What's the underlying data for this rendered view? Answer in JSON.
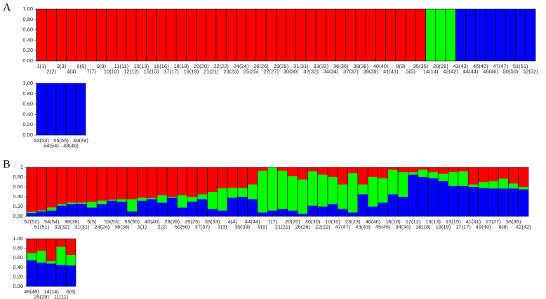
{
  "chart_data": [
    {
      "type": "bar",
      "stacked": true,
      "title": "A",
      "categories": [
        "1(1)",
        "2(2)",
        "3(3)",
        "4(4)",
        "6(6)",
        "7(7)",
        "9(9)",
        "10(10)",
        "11(11)",
        "12(12)",
        "13(13)",
        "15(15)",
        "16(16)",
        "17(17)",
        "18(18)",
        "19(19)",
        "20(20)",
        "21(21)",
        "22(22)",
        "23(23)",
        "24(24)",
        "25(25)",
        "26(26)",
        "27(27)",
        "29(29)",
        "30(30)",
        "31(31)",
        "32(32)",
        "33(33)",
        "34(34)",
        "36(36)",
        "37(37)",
        "38(38)",
        "39(39)",
        "40(40)",
        "41(41)",
        "8(8)",
        "5(5)",
        "35(35)",
        "14(14)",
        "28(28)",
        "42(42)",
        "43(43)",
        "44(44)",
        "45(45)",
        "46(46)",
        "47(47)",
        "50(50)",
        "51(51)",
        "52(52)"
      ],
      "series": [
        {
          "color": "#0000ff",
          "values": [
            0,
            0,
            0,
            0,
            0,
            0,
            0,
            0,
            0,
            0,
            0,
            0,
            0,
            0,
            0,
            0,
            0,
            0,
            0,
            0,
            0,
            0,
            0,
            0,
            0,
            0,
            0,
            0,
            0,
            0,
            0,
            0,
            0,
            0,
            0,
            0,
            0,
            0,
            0,
            0,
            0,
            0,
            1,
            1,
            1,
            1,
            1,
            1,
            1,
            1
          ]
        },
        {
          "color": "#00ff00",
          "values": [
            0,
            0,
            0,
            0,
            0,
            0,
            0,
            0,
            0,
            0,
            0,
            0,
            0,
            0,
            0,
            0,
            0,
            0,
            0,
            0,
            0,
            0,
            0,
            0,
            0,
            0,
            0,
            0,
            0,
            0,
            0,
            0,
            0,
            0,
            0,
            0,
            0,
            0,
            0,
            1,
            1,
            1,
            0,
            0,
            0,
            0,
            0,
            0,
            0,
            0
          ]
        },
        {
          "color": "#ff0000",
          "values": [
            1,
            1,
            1,
            1,
            1,
            1,
            1,
            1,
            1,
            1,
            1,
            1,
            1,
            1,
            1,
            1,
            1,
            1,
            1,
            1,
            1,
            1,
            1,
            1,
            1,
            1,
            1,
            1,
            1,
            1,
            1,
            1,
            1,
            1,
            1,
            1,
            1,
            1,
            1,
            0,
            0,
            0,
            0,
            0,
            0,
            0,
            0,
            0,
            0,
            0
          ]
        }
      ],
      "ylim": [
        0,
        1
      ],
      "yticks": [
        {
          "value": 0,
          "label": "0.00"
        },
        {
          "value": 0.2,
          "label": "0.20"
        },
        {
          "value": 0.4,
          "label": "0.40"
        },
        {
          "value": 0.6,
          "label": "0.60"
        },
        {
          "value": 0.8,
          "label": "0.80"
        },
        {
          "value": 1,
          "label": "1.00"
        }
      ]
    },
    {
      "type": "bar",
      "stacked": true,
      "categories": [
        "53(53)",
        "54(54)",
        "55(55)",
        "48(48)",
        "49(49)"
      ],
      "series": [
        {
          "color": "#0000ff",
          "values": [
            1,
            1,
            1,
            1,
            1
          ]
        },
        {
          "color": "#00ff00",
          "values": [
            0,
            0,
            0,
            0,
            0
          ]
        },
        {
          "color": "#ff0000",
          "values": [
            0,
            0,
            0,
            0,
            0
          ]
        }
      ],
      "ylim": [
        0,
        1
      ],
      "yticks": [
        {
          "value": 0,
          "label": "0.00"
        },
        {
          "value": 0.2,
          "label": "0.20"
        },
        {
          "value": 0.4,
          "label": "0.40"
        },
        {
          "value": 0.6,
          "label": "0.60"
        },
        {
          "value": 0.8,
          "label": "0.80"
        },
        {
          "value": 1,
          "label": "1.00"
        }
      ]
    },
    {
      "type": "bar",
      "stacked": true,
      "title": "B",
      "categories": [
        "52(52)",
        "51(51)",
        "54(54)",
        "32(32)",
        "38(38)",
        "31(31)",
        "5(5)",
        "24(24)",
        "53(53)",
        "36(36)",
        "55(55)",
        "1(1)",
        "40(40)",
        "2(2)",
        "28(28)",
        "50(50)",
        "25(25)",
        "37(37)",
        "33(33)",
        "3(3)",
        "4(4)",
        "39(39)",
        "44(44)",
        "9(9)",
        "7(7)",
        "21(21)",
        "20(20)",
        "26(26)",
        "30(30)",
        "22(22)",
        "10(10)",
        "47(47)",
        "23(23)",
        "43(43)",
        "46(46)",
        "45(45)",
        "16(16)",
        "34(34)",
        "12(12)",
        "18(18)",
        "13(13)",
        "19(19)",
        "15(15)",
        "17(17)",
        "41(41)",
        "49(49)",
        "27(27)",
        "8(8)",
        "35(35)",
        "42(42)"
      ],
      "series": [
        {
          "color": "#0000ff",
          "values": [
            0.07,
            0.1,
            0.12,
            0.22,
            0.25,
            0.26,
            0.18,
            0.25,
            0.32,
            0.3,
            0.1,
            0.32,
            0.35,
            0.28,
            0.38,
            0.18,
            0.3,
            0.35,
            0.15,
            0.12,
            0.38,
            0.4,
            0.35,
            0.08,
            0.12,
            0.15,
            0.12,
            0.05,
            0.22,
            0.2,
            0.25,
            0.15,
            0.08,
            0.45,
            0.2,
            0.28,
            0.45,
            0.4,
            0.85,
            0.8,
            0.78,
            0.72,
            0.62,
            0.62,
            0.6,
            0.58,
            0.57,
            0.57,
            0.57,
            0.55
          ]
        },
        {
          "color": "#00ff00",
          "values": [
            0.02,
            0.02,
            0.06,
            0.03,
            0.03,
            0.02,
            0.12,
            0.07,
            0.02,
            0.05,
            0.25,
            0.06,
            0.02,
            0.15,
            0.02,
            0.25,
            0.1,
            0.1,
            0.35,
            0.45,
            0.2,
            0.18,
            0.3,
            0.85,
            0.88,
            0.78,
            0.7,
            0.7,
            0.7,
            0.65,
            0.55,
            0.5,
            0.8,
            0.2,
            0.6,
            0.5,
            0.5,
            0.5,
            0.05,
            0.15,
            0.12,
            0.15,
            0.28,
            0.3,
            0.05,
            0.12,
            0.15,
            0.2,
            0.1,
            0.05
          ]
        },
        {
          "color": "#ff0000",
          "values": [
            0.91,
            0.88,
            0.82,
            0.75,
            0.72,
            0.72,
            0.7,
            0.68,
            0.66,
            0.65,
            0.65,
            0.62,
            0.63,
            0.57,
            0.6,
            0.57,
            0.6,
            0.55,
            0.5,
            0.43,
            0.42,
            0.42,
            0.35,
            0.07,
            0,
            0.07,
            0.18,
            0.25,
            0.08,
            0.15,
            0.2,
            0.35,
            0.12,
            0.35,
            0.2,
            0.22,
            0.05,
            0.1,
            0.1,
            0.05,
            0.1,
            0.13,
            0.1,
            0.08,
            0.35,
            0.3,
            0.28,
            0.23,
            0.33,
            0.4
          ]
        }
      ],
      "ylim": [
        0,
        1
      ],
      "yticks": [
        {
          "value": 0,
          "label": "0.00"
        },
        {
          "value": 0.2,
          "label": "0.20"
        },
        {
          "value": 0.4,
          "label": "0.40"
        },
        {
          "value": 0.6,
          "label": "0.60"
        },
        {
          "value": 0.8,
          "label": "0.80"
        },
        1
      ]
    },
    {
      "type": "bar",
      "stacked": true,
      "categories": [
        "48(48)",
        "29(29)",
        "14(14)",
        "11(11)",
        "6(6)"
      ],
      "series": [
        {
          "color": "#0000ff",
          "values": [
            0.55,
            0.5,
            0.48,
            0.45,
            0.44
          ]
        },
        {
          "color": "#00ff00",
          "values": [
            0.15,
            0.25,
            0.05,
            0.38,
            0.22
          ]
        },
        {
          "color": "#ff0000",
          "values": [
            0.3,
            0.25,
            0.47,
            0.17,
            0.34
          ]
        }
      ],
      "ylim": [
        0,
        1
      ],
      "yticks": [
        {
          "value": 0,
          "label": "0.00"
        },
        {
          "value": 0.2,
          "label": "0.20"
        },
        {
          "value": 0.4,
          "label": "0.40"
        },
        {
          "value": 0.6,
          "label": "0.60"
        },
        {
          "value": 0.8,
          "label": "0.80"
        },
        {
          "value": 1,
          "label": "1.00"
        }
      ]
    }
  ]
}
